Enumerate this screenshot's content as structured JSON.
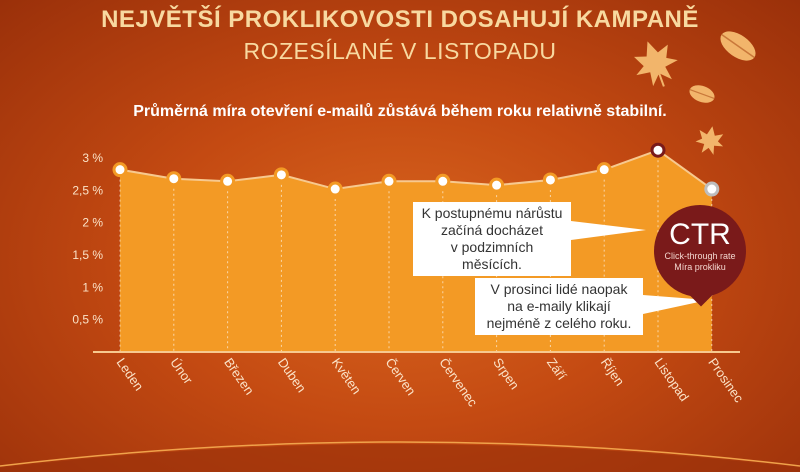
{
  "header": {
    "title": "NEJVĚTŠÍ PROKLIKOVOSTI DOSAHUJÍ KAMPANĚ",
    "subtitle": "ROZESÍLANÉ V LISTOPADU"
  },
  "description": "Průměrná míra otevření e-mailů zůstává během roku relativně stabilní.",
  "callouts": {
    "autumn": [
      "K postupnému nárůstu",
      "začíná docházet",
      "v podzimních měsících."
    ],
    "december": [
      "V prosinci lidé naopak",
      "na e-maily klikají",
      "nejméně z celého roku."
    ]
  },
  "badge": {
    "big": "CTR",
    "line1": "Click-through rate",
    "line2": "Míra prokliku"
  },
  "colors": {
    "background": "#c44a12",
    "area_fill": "#f39a25",
    "line": "#f7c98f",
    "highlight": "#7a1a1a",
    "title": "#f8d9a0"
  },
  "chart_data": {
    "type": "area",
    "categories": [
      "Leden",
      "Únor",
      "Březen",
      "Duben",
      "Květen",
      "Červen",
      "Červenec",
      "Srpen",
      "Září",
      "Říjen",
      "Listopad",
      "Prosinec"
    ],
    "values": [
      2.82,
      2.68,
      2.64,
      2.74,
      2.52,
      2.64,
      2.64,
      2.58,
      2.66,
      2.82,
      3.12,
      2.52
    ],
    "yticks": [
      "3 %",
      "2,5 %",
      "2 %",
      "1,5 %",
      "1 %",
      "0,5 %"
    ],
    "ytick_values": [
      3,
      2.5,
      2,
      1.5,
      1,
      0.5
    ],
    "ylim": [
      0,
      3
    ],
    "grid": false,
    "highlight_index": 10
  }
}
